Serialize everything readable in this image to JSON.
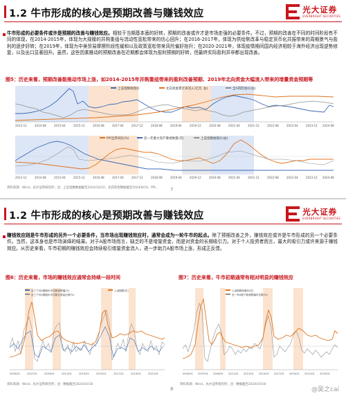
{
  "slide1": {
    "title": "1.2 牛市形成的核心是预期改善与赚钱效应",
    "logo_cn": "光大证券",
    "logo_en": "EVERBRIGHT SECURITIES",
    "para_bold": "牛市形成的必要条件或许是预期的改善与赚钱效应。",
    "para_rest": "相较于当期基本面的好转，预期的改善或许才是市场走强的必要条件。不过，预期的改善在不同的时间阶段有不同的体现，在2014-2015年，体现为大规模的并购重组与流动性宽松带来的信心回升；在2016-2017年，体现为供给侧改革与稳定货币化共振带来的周期景气与盈利的逐步好转；在2019年，体现为中美贸易摩擦阶段性缓和以及政策宽松带来风险偏好抬升；在2020-2021年，体现疫情期间国内经济相较于海外经济出现逆势修复，以及出口显著回升。虽然，这些因素推动的预期改善在近期都会体现为盈利预期的好转，但最终实际盈利并非都出现改善。",
    "fig5_title": "图5：历史来看，预期改善能推动市场上涨，如2014-2015年并购重组带来的盈利改善预期、2019年北向资金大幅流入带来的增量资金预期等",
    "fig5_top_legend": [
      "上证指数收盘价",
      "北向资金累计净流入(亿元, 右)",
      "全A风险溢价(右)"
    ],
    "fig5_top_xticks": [
      "2013-12",
      "2014-08",
      "2015-04",
      "2015-12",
      "2016-08",
      "2017-04",
      "2017-12",
      "2018-08",
      "2019-04",
      "2019-12",
      "2020-08",
      "2021-04",
      "2021-12",
      "2022-08",
      "2023-04",
      "2023-12",
      "2024-08"
    ],
    "fig5_bottom_legend": [
      "PPI当月同比(%)",
      "近一年重大资产重组数量(次)",
      "上证指数收盘价(右)"
    ],
    "fig5_bottom_xticks": [
      "2013-12",
      "2014-08",
      "2015-04",
      "2015-12",
      "2016-08",
      "2017-04",
      "2017-12",
      "2018-08",
      "2019-04",
      "2019-12",
      "2020-08",
      "2021-04",
      "2021-12",
      "2022-08",
      "2023-04",
      "2023-12",
      "2024-08"
    ],
    "fig5_source": "资料来源：Wind，光大证券研究所；注：上证指数数据截至2024/10/22，北向资金数据截至2024/8/16，PPI...",
    "page_num": "7"
  },
  "slide2": {
    "title": "1.2 牛市形成的核心是预期改善与赚钱效应",
    "logo_cn": "光大证券",
    "logo_en": "EVERBRIGHT SECURITIES",
    "para_bold": "赚钱效应则是牛市形成的另外一个必要条件，当市场出现赚钱效应时，通常会成为一轮牛市的起点。",
    "para_rest": "除了预期改善之外，赚钱效应或许是牛市形成的另一个必要条件。当然，这本身也是市场演绎的结果。对于A股市场而言，缺乏的不是增量资金，而是对资金的长期吸引力。对于个人投资者而言，最大的吸引力或许来源于赚钱效应。从历史来看，牛市初期的赚钱效应会持续吸引增量资金流入，进一步助力A股市场上涨，形成正反馈。",
    "fig6_title": "图6：历史来看，市场的赚钱效应通常会持续一段时间",
    "fig6_legend": [
      "近三个月A股股价中位数涨跌幅(%)",
      "近三个月A股股价中位数正收益比例(%)",
      "上证指数(右)"
    ],
    "fig6_xticks": [
      "2005/01",
      "2007/01",
      "2009/01",
      "2011/01",
      "2013/01",
      "2015/01",
      "2017/01",
      "2019/01",
      "2021/01"
    ],
    "fig6_source": "资料来源：Wind，光大证券研究所；注：数据截至2024/10/18",
    "fig7_title": "图7：历史来看，牛市初期通常有相对明显的赚钱效应",
    "fig7_legend": [
      "上证指数收盘价(右)",
      "近一年A股个股涨跌幅中位数(%)"
    ],
    "fig7_xticks": [
      "2005/01",
      "2007/01",
      "2009/01",
      "2011/01",
      "2013/01",
      "2015/01",
      "2017/01",
      "2019/01",
      "2021/01",
      "2023/01"
    ],
    "fig7_source": "资料来源：Wind，光大证券研究所；注：数据截至2024/10/18",
    "page_num": "8",
    "watermark": "@吴之cai"
  },
  "colors": {
    "accent": "#c8161d",
    "orange": "#e0731e",
    "blue": "#3c68b4",
    "gray": "#8e8e8e",
    "shade_blue": "#dde6f6",
    "shade_orange": "#fbe3cf",
    "shade_gray": "#e9e9e9"
  }
}
